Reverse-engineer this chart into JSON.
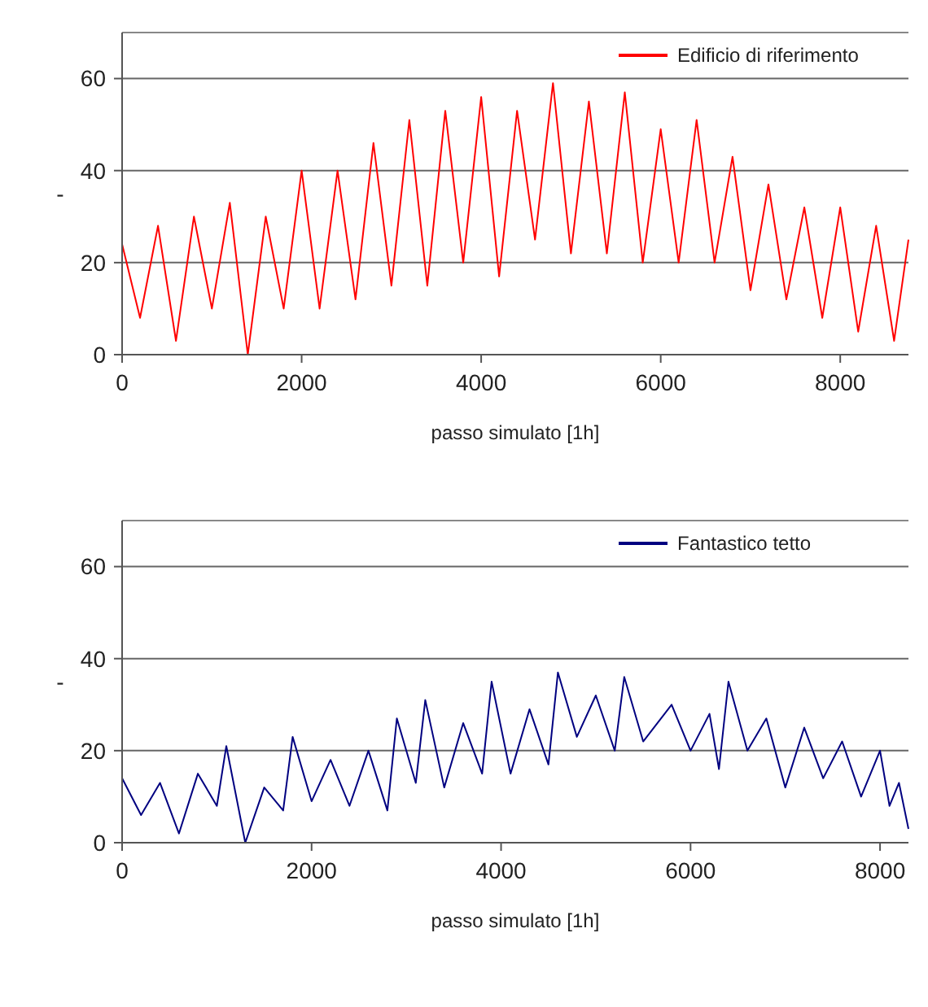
{
  "chart_data": [
    {
      "type": "line",
      "xlabel": "passo simulato [1h]",
      "ylabel": "-",
      "xlim": [
        0,
        8760
      ],
      "ylim": [
        0,
        70
      ],
      "xticks": [
        0,
        2000,
        4000,
        6000,
        8000
      ],
      "yticks": [
        0,
        20,
        40,
        60
      ],
      "grid": "y",
      "legend": "top right",
      "series": [
        {
          "name": "Edificio di riferimento",
          "color": "#ff0000",
          "x": [
            0,
            200,
            400,
            600,
            800,
            1000,
            1200,
            1400,
            1600,
            1800,
            2000,
            2200,
            2400,
            2600,
            2800,
            3000,
            3200,
            3400,
            3600,
            3800,
            4000,
            4200,
            4400,
            4600,
            4800,
            5000,
            5200,
            5400,
            5600,
            5800,
            6000,
            6200,
            6400,
            6600,
            6800,
            7000,
            7200,
            7400,
            7600,
            7800,
            8000,
            8200,
            8400,
            8600,
            8760
          ],
          "values": [
            24,
            8,
            28,
            3,
            30,
            10,
            33,
            0,
            30,
            10,
            40,
            10,
            40,
            12,
            46,
            15,
            51,
            15,
            53,
            20,
            56,
            17,
            53,
            25,
            59,
            22,
            55,
            22,
            57,
            20,
            49,
            20,
            51,
            20,
            43,
            14,
            37,
            12,
            32,
            8,
            32,
            5,
            28,
            3,
            25
          ]
        }
      ]
    },
    {
      "type": "line",
      "xlabel": "passo simulato [1h]",
      "ylabel": "-",
      "xlim": [
        0,
        8300
      ],
      "ylim": [
        0,
        70
      ],
      "xticks": [
        0,
        2000,
        4000,
        6000,
        8000
      ],
      "yticks": [
        0,
        20,
        40,
        60
      ],
      "grid": "y",
      "legend": "top right",
      "series": [
        {
          "name": "Fantastico tetto",
          "color": "#000080",
          "x": [
            0,
            200,
            400,
            600,
            800,
            1000,
            1100,
            1300,
            1500,
            1700,
            1800,
            2000,
            2200,
            2400,
            2600,
            2800,
            2900,
            3100,
            3200,
            3400,
            3600,
            3800,
            3900,
            4100,
            4300,
            4500,
            4600,
            4800,
            5000,
            5200,
            5300,
            5500,
            5800,
            6000,
            6200,
            6300,
            6400,
            6600,
            6800,
            7000,
            7200,
            7400,
            7600,
            7800,
            8000,
            8100,
            8200,
            8300
          ],
          "values": [
            14,
            6,
            13,
            2,
            15,
            8,
            21,
            0,
            12,
            7,
            23,
            9,
            18,
            8,
            20,
            7,
            27,
            13,
            31,
            12,
            26,
            15,
            35,
            15,
            29,
            17,
            37,
            23,
            32,
            20,
            36,
            22,
            30,
            20,
            28,
            16,
            35,
            20,
            27,
            12,
            25,
            14,
            22,
            10,
            20,
            8,
            13,
            3
          ]
        }
      ]
    }
  ]
}
